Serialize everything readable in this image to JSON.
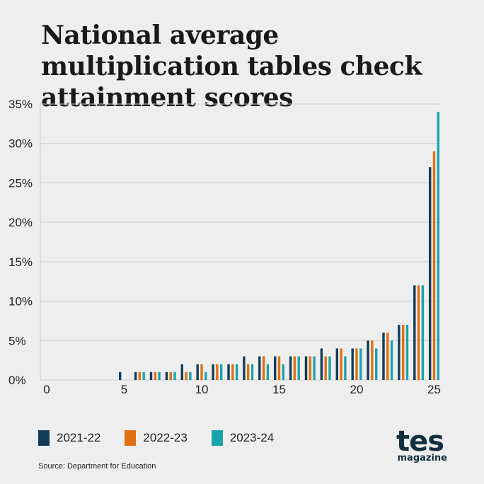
{
  "title": "National average multiplication tables check attainment scores",
  "chart_data": {
    "type": "bar",
    "title": "National average multiplication tables check attainment scores",
    "xlabel": "",
    "ylabel": "",
    "categories": [
      0,
      1,
      2,
      3,
      4,
      5,
      6,
      7,
      8,
      9,
      10,
      11,
      12,
      13,
      14,
      15,
      16,
      17,
      18,
      19,
      20,
      21,
      22,
      23,
      24,
      25
    ],
    "x_tick_labels": [
      "0",
      "5",
      "10",
      "15",
      "20",
      "25"
    ],
    "y_tick_labels": [
      "0%",
      "5%",
      "10%",
      "15%",
      "20%",
      "25%",
      "30%",
      "35%"
    ],
    "ylim": [
      0,
      35
    ],
    "grid": true,
    "legend_position": "bottom-left",
    "series": [
      {
        "name": "2021-22",
        "color": "#123c5a",
        "values": [
          0,
          0,
          0,
          0,
          0,
          1,
          1,
          1,
          1,
          2,
          2,
          2,
          2,
          3,
          3,
          3,
          3,
          3,
          4,
          4,
          4,
          5,
          6,
          7,
          12,
          27
        ]
      },
      {
        "name": "2022-23",
        "color": "#e07010",
        "values": [
          0,
          0,
          0,
          0,
          0,
          0,
          1,
          1,
          1,
          1,
          2,
          2,
          2,
          2,
          3,
          3,
          3,
          3,
          3,
          4,
          4,
          5,
          6,
          7,
          12,
          29
        ]
      },
      {
        "name": "2023-24",
        "color": "#1aa3ad",
        "values": [
          0,
          0,
          0,
          0,
          0,
          0,
          1,
          1,
          1,
          1,
          1,
          2,
          2,
          2,
          2,
          2,
          3,
          3,
          3,
          3,
          4,
          4,
          5,
          7,
          12,
          34
        ]
      }
    ]
  },
  "source": "Source: Department for Education",
  "logo": {
    "main": "tes",
    "sub": "magazine"
  }
}
